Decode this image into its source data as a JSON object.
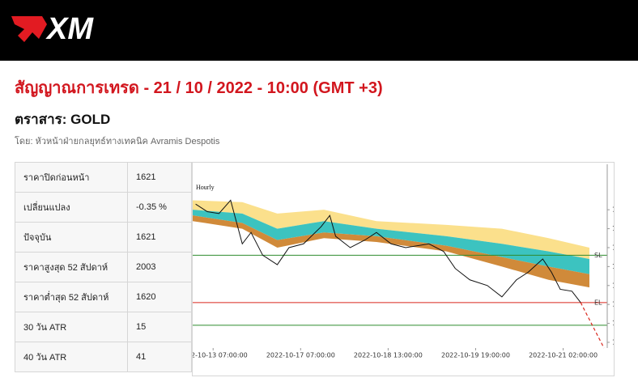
{
  "header": {
    "logo": "XM"
  },
  "title": "สัญญาณการเทรด - 21 / 10 / 2022 - 10:00 (GMT +3)",
  "instrument": "ตราสาร: GOLD",
  "byline": "โดย: หัวหน้าฝ่ายกลยุทธ์ทางเทคนิค Avramis Despotis",
  "table": {
    "rows": [
      [
        "ราคาปิดก่อนหน้า",
        "1621"
      ],
      [
        "เปลี่ยนแปลง",
        "-0.35 %"
      ],
      [
        "ปัจจุบัน",
        "1621"
      ],
      [
        "ราคาสูงสุด 52 สัปดาห์",
        "2003"
      ],
      [
        "ราคาต่ำสุด 52 สัปดาห์",
        "1620"
      ],
      [
        "30 วัน ATR",
        "15"
      ],
      [
        "40 วัน ATR",
        "41"
      ]
    ]
  },
  "chart_data": {
    "type": "line",
    "title": "Hourly",
    "xlim": [
      0,
      141
    ],
    "ylim": [
      1597,
      1694
    ],
    "xticks": [
      {
        "value": 7,
        "label": "2022-10-13 07:00:00"
      },
      {
        "value": 37,
        "label": "2022-10-17 07:00:00"
      },
      {
        "value": 67,
        "label": "2022-10-18 13:00:00"
      },
      {
        "value": 97,
        "label": "2022-10-19 19:00:00"
      },
      {
        "value": 127,
        "label": "2022-10-21 02:00:00"
      }
    ],
    "yticks": [
      1600,
      1610,
      1620,
      1630,
      1640,
      1650,
      1660,
      1670
    ],
    "series": [
      {
        "name": "price",
        "color": "#111111",
        "x": [
          1,
          5,
          9,
          13,
          17,
          20,
          24,
          29,
          33,
          38,
          44,
          47,
          49,
          54,
          59,
          63,
          68,
          73,
          81,
          86,
          90,
          95,
          101,
          106,
          111,
          115,
          120,
          123,
          126,
          130,
          133
        ],
        "values": [
          1673,
          1669,
          1668,
          1675,
          1652,
          1658,
          1646,
          1641,
          1650,
          1652,
          1661,
          1667,
          1656,
          1650,
          1654,
          1658,
          1652,
          1650,
          1652,
          1648,
          1639,
          1633,
          1630,
          1624,
          1633,
          1637,
          1644,
          1637,
          1628,
          1627,
          1621
        ]
      },
      {
        "name": "projection",
        "color": "#d9261c",
        "x": [
          133,
          141
        ],
        "values": [
          1621,
          1597
        ]
      }
    ],
    "bands": {
      "x": [
        0,
        17,
        29,
        45,
        63,
        87,
        106,
        122,
        136
      ],
      "upper": [
        1675,
        1674,
        1668,
        1670,
        1664,
        1662,
        1660,
        1655,
        1650
      ],
      "mid1": [
        1670,
        1668,
        1660,
        1664,
        1660,
        1656,
        1652,
        1648,
        1644
      ],
      "mid2": [
        1667,
        1663,
        1654,
        1658,
        1656,
        1651,
        1645,
        1640,
        1636
      ],
      "lower": [
        1664,
        1660,
        1650,
        1655,
        1653,
        1648,
        1640,
        1633,
        1629
      ],
      "colors": [
        "#fbe08c",
        "#3cc3c0",
        "#d08a3a"
      ]
    },
    "levels": [
      {
        "label": "SL",
        "value": 1646,
        "color": "#2e8b2e"
      },
      {
        "label": "EL",
        "value": 1621,
        "color": "#d9261c"
      },
      {
        "value": 1609,
        "color": "#2e8b2e"
      }
    ]
  }
}
